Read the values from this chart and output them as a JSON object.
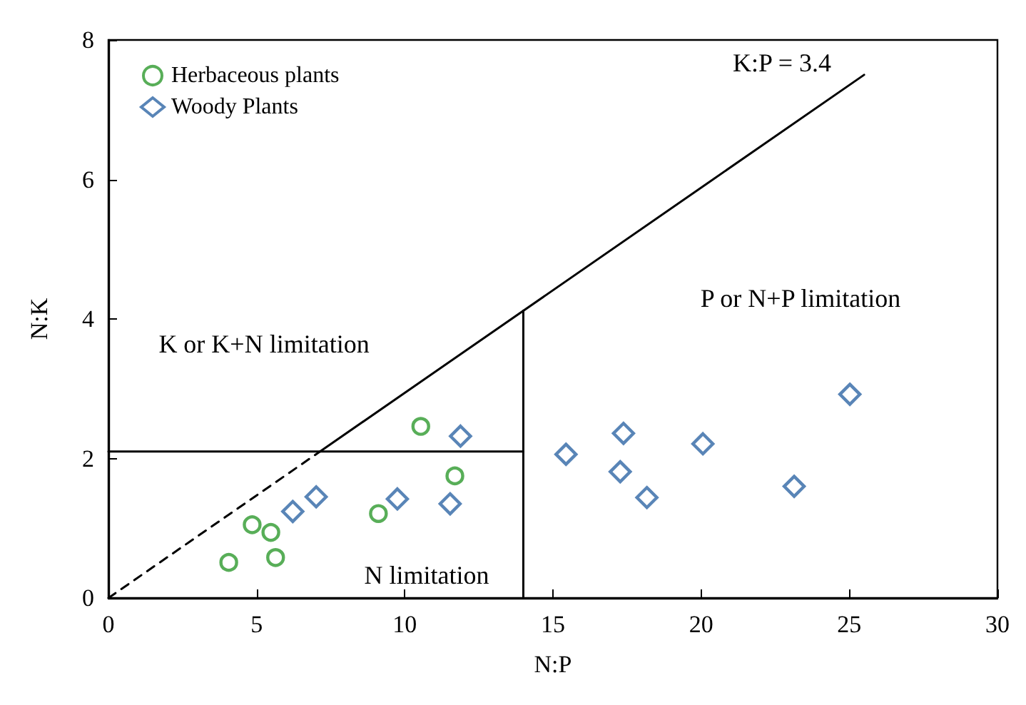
{
  "chart_data": {
    "type": "scatter",
    "xlabel": "N:P",
    "ylabel": "N:K",
    "xlim": [
      0,
      30
    ],
    "xticks": [
      0,
      5,
      10,
      15,
      20,
      25,
      30
    ],
    "ylim": [
      0,
      8
    ],
    "yticks": [
      0,
      2,
      4,
      6,
      8
    ],
    "grid": false,
    "legend": "top left",
    "series": [
      {
        "name": "Herbaceous plants",
        "color": "#2e9a2e",
        "marker": "circle",
        "x": [
          4.06,
          4.85,
          5.48,
          5.64,
          9.11,
          10.54,
          11.69
        ],
        "values": [
          0.51,
          1.05,
          0.94,
          0.58,
          1.21,
          2.46,
          1.75
        ]
      },
      {
        "name": "Woody Plants",
        "color": "#2f67a5",
        "marker": "diamond",
        "x": [
          6.22,
          7.01,
          9.75,
          11.53,
          11.88,
          15.44,
          17.38,
          17.27,
          18.17,
          20.06,
          23.14,
          25.02
        ],
        "values": [
          1.24,
          1.45,
          1.42,
          1.35,
          2.32,
          2.06,
          2.36,
          1.81,
          1.44,
          2.21,
          1.6,
          2.92
        ]
      },
      {
        "type": "line",
        "color": "#000000",
        "marker": "none",
        "line_style": "dashed",
        "x": [
          0,
          7.14
        ],
        "values": [
          0,
          2.1
        ]
      },
      {
        "type": "line",
        "color": "#000000",
        "marker": "none",
        "line_style": "solid",
        "x": [
          7.14,
          25.5
        ],
        "values": [
          2.1,
          7.5
        ]
      },
      {
        "type": "line",
        "color": "#000000",
        "marker": "none",
        "line_style": "solid",
        "x": [
          0,
          14
        ],
        "values": [
          2.1,
          2.1
        ]
      },
      {
        "type": "line",
        "color": "#000000",
        "marker": "none",
        "line_style": "solid",
        "x": [
          14,
          14
        ],
        "values": [
          0,
          4.12
        ]
      }
    ],
    "annotations": [
      "K:P = 3.4",
      "K or K+N limitation",
      "P or N+P limitation",
      "N limitation"
    ]
  }
}
